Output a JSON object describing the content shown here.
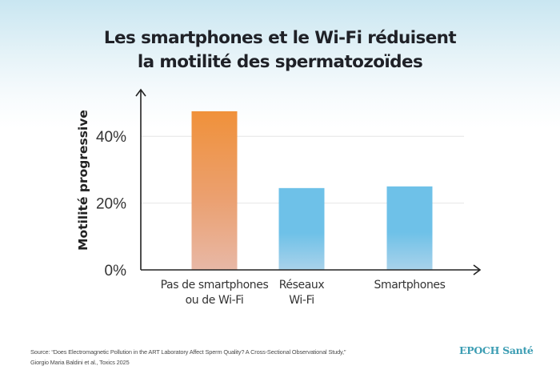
{
  "title_lines": [
    "Les smartphones et le Wi-Fi réduisent",
    "la motilité des spermatozoïdes"
  ],
  "chart_data": {
    "type": "bar",
    "title": "Les smartphones et le Wi-Fi réduisent la motilité des spermatozoïdes",
    "xlabel": "",
    "ylabel": "Motilité progressive",
    "ylim": [
      0,
      50
    ],
    "yticks": [
      0,
      20,
      40
    ],
    "ytick_labels": [
      "0%",
      "20%",
      "40%"
    ],
    "grid": true,
    "categories": [
      [
        "Pas de smartphones",
        "ou de Wi-Fi"
      ],
      [
        "Réseaux",
        "Wi-Fi"
      ],
      [
        "Smartphones"
      ]
    ],
    "values": [
      47.5,
      24.5,
      25.0
    ],
    "unit": "%",
    "colors": [
      {
        "top": "#f0913a",
        "bottom": "#e8b8a6"
      },
      {
        "top": "#6ec1e8",
        "bottom": "#a9d2ea"
      },
      {
        "top": "#6ec1e8",
        "bottom": "#a9d2ea"
      }
    ]
  },
  "source": {
    "line1": "Source: “Does Electromagnetic Pollution in the ART Laboratory Affect Sperm Quality? A Cross-Sectional Observational Study,”",
    "line2": "Giorgio Maria Baldini et al., Toxics 2025"
  },
  "brand": "EPOCH Santé"
}
